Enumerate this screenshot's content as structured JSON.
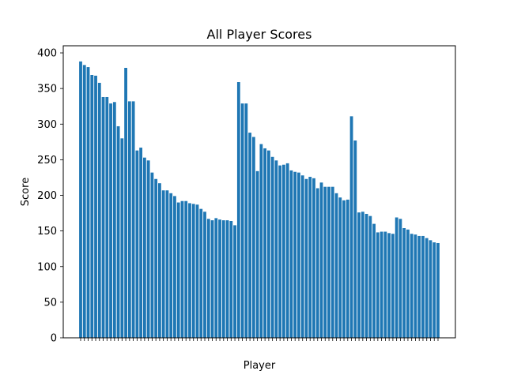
{
  "chart_data": {
    "type": "bar",
    "title": "All Player Scores",
    "xlabel": "Player",
    "ylabel": "Score",
    "ylim": [
      0,
      410
    ],
    "yticks": [
      0,
      50,
      100,
      150,
      200,
      250,
      300,
      350,
      400
    ],
    "grid": false,
    "bar_color": "#1f77b4",
    "values": [
      388,
      383,
      380,
      369,
      368,
      358,
      338,
      338,
      329,
      331,
      297,
      280,
      379,
      332,
      332,
      263,
      267,
      253,
      249,
      232,
      223,
      217,
      207,
      207,
      203,
      199,
      190,
      192,
      192,
      189,
      188,
      187,
      181,
      177,
      167,
      165,
      168,
      166,
      165,
      165,
      164,
      158,
      359,
      329,
      329,
      288,
      282,
      234,
      272,
      266,
      263,
      254,
      249,
      242,
      243,
      245,
      235,
      233,
      232,
      228,
      223,
      226,
      224,
      210,
      218,
      212,
      212,
      212,
      203,
      197,
      193,
      194,
      311,
      277,
      176,
      177,
      174,
      171,
      160,
      148,
      149,
      149,
      147,
      146,
      169,
      167,
      154,
      152,
      146,
      145,
      143,
      143,
      140,
      137,
      134,
      133
    ]
  }
}
